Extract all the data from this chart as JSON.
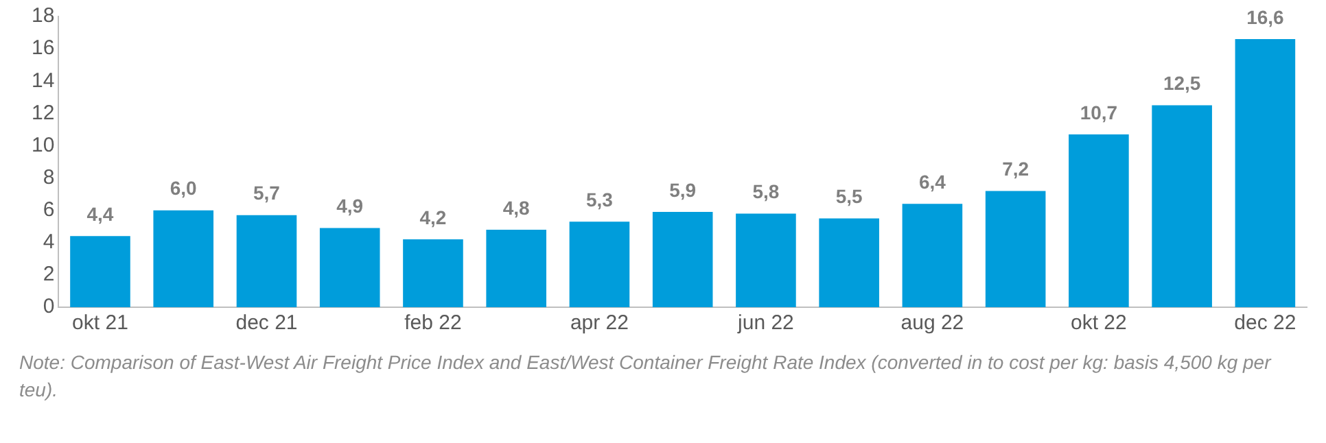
{
  "chart_data": {
    "type": "bar",
    "categories": [
      "okt 21",
      null,
      "dec 21",
      null,
      "feb 22",
      null,
      "apr 22",
      null,
      "jun 22",
      null,
      "aug 22",
      null,
      "okt 22",
      null,
      "dec 22"
    ],
    "values": [
      4.4,
      6.0,
      5.7,
      4.9,
      4.2,
      4.8,
      5.3,
      5.9,
      5.8,
      5.5,
      6.4,
      7.2,
      10.7,
      12.5,
      16.6
    ],
    "value_labels": [
      "4,4",
      "6,0",
      "5,7",
      "4,9",
      "4,2",
      "4,8",
      "5,3",
      "5,9",
      "5,8",
      "5,5",
      "6,4",
      "7,2",
      "10,7",
      "12,5",
      "16,6"
    ],
    "color": "#009ddb",
    "ylim": [
      0,
      18
    ],
    "yticks": [
      0,
      2,
      4,
      6,
      8,
      10,
      12,
      14,
      16,
      18
    ],
    "grid": false,
    "legend": false,
    "annotations": [
      "Note: Comparison of East-West Air Freight Price Index and East/West Container Freight Rate Index (converted in to cost per kg: basis 4,500 kg per teu)."
    ]
  }
}
